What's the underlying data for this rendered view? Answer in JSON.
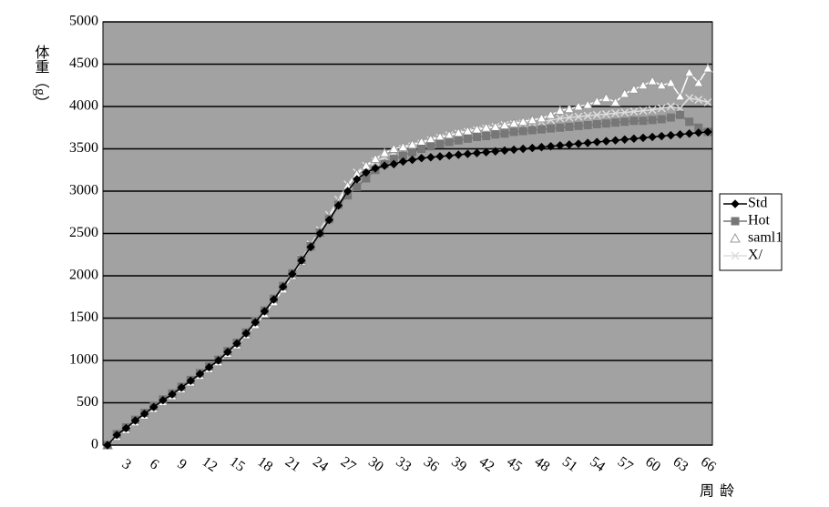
{
  "chart_data": {
    "type": "line",
    "y_label": "体重（g）",
    "x_label": "周龄",
    "categories": [
      null,
      null,
      3,
      null,
      null,
      6,
      null,
      null,
      9,
      null,
      null,
      12,
      null,
      null,
      15,
      null,
      null,
      18,
      null,
      null,
      21,
      null,
      null,
      24,
      null,
      null,
      27,
      null,
      null,
      30,
      null,
      null,
      33,
      null,
      null,
      36,
      null,
      null,
      39,
      null,
      null,
      42,
      null,
      null,
      45,
      null,
      null,
      48,
      null,
      null,
      51,
      null,
      null,
      54,
      null,
      null,
      57,
      null,
      null,
      60,
      null,
      null,
      63,
      null,
      null,
      66
    ],
    "series": [
      {
        "name": "Std",
        "color": "#000000",
        "marker": "diamond",
        "values": [
          0,
          120,
          200,
          290,
          370,
          450,
          530,
          600,
          680,
          760,
          840,
          920,
          1000,
          1100,
          1200,
          1320,
          1450,
          1580,
          1720,
          1870,
          2020,
          2180,
          2340,
          2500,
          2660,
          2830,
          3000,
          3140,
          3220,
          3270,
          3300,
          3320,
          3350,
          3370,
          3390,
          3400,
          3410,
          3420,
          3430,
          3440,
          3450,
          3460,
          3470,
          3480,
          3490,
          3500,
          3510,
          3520,
          3530,
          3540,
          3550,
          3560,
          3570,
          3580,
          3590,
          3600,
          3610,
          3620,
          3630,
          3640,
          3650,
          3660,
          3670,
          3680,
          3690,
          3700
        ]
      },
      {
        "name": "Hot",
        "color": "#777777",
        "marker": "square",
        "values": [
          0,
          130,
          210,
          300,
          380,
          460,
          540,
          610,
          690,
          770,
          850,
          930,
          1010,
          1110,
          1210,
          1330,
          1460,
          1590,
          1730,
          1880,
          2030,
          2190,
          2350,
          2510,
          2670,
          2840,
          2950,
          3050,
          3150,
          3250,
          3320,
          3380,
          3420,
          3460,
          3500,
          3530,
          3560,
          3580,
          3600,
          3620,
          3640,
          3650,
          3670,
          3680,
          3700,
          3710,
          3720,
          3730,
          3740,
          3750,
          3760,
          3770,
          3780,
          3790,
          3800,
          3810,
          3820,
          3830,
          3830,
          3840,
          3850,
          3870,
          3900,
          3820,
          3750,
          3700
        ]
      },
      {
        "name": "saml1",
        "color": "#ffffff",
        "marker": "triangle",
        "values": [
          0,
          100,
          180,
          270,
          350,
          430,
          510,
          580,
          660,
          740,
          820,
          900,
          980,
          1080,
          1180,
          1300,
          1420,
          1550,
          1690,
          1840,
          2000,
          2170,
          2340,
          2510,
          2690,
          2870,
          3060,
          3200,
          3300,
          3380,
          3450,
          3500,
          3520,
          3550,
          3580,
          3610,
          3640,
          3660,
          3690,
          3710,
          3730,
          3750,
          3760,
          3780,
          3800,
          3820,
          3840,
          3860,
          3900,
          3950,
          3970,
          4000,
          4020,
          4060,
          4100,
          4050,
          4150,
          4200,
          4250,
          4300,
          4250,
          4280,
          4120,
          4400,
          4280,
          4450
        ]
      },
      {
        "name": "X/",
        "color": "#dddddd",
        "marker": "x",
        "values": [
          0,
          110,
          200,
          280,
          360,
          440,
          520,
          600,
          680,
          760,
          840,
          920,
          1000,
          1100,
          1200,
          1320,
          1450,
          1580,
          1720,
          1870,
          2030,
          2200,
          2370,
          2540,
          2720,
          2900,
          3080,
          3220,
          3300,
          3350,
          3400,
          3450,
          3500,
          3530,
          3560,
          3600,
          3630,
          3660,
          3680,
          3700,
          3720,
          3740,
          3760,
          3780,
          3790,
          3800,
          3810,
          3820,
          3840,
          3860,
          3870,
          3880,
          3890,
          3900,
          3910,
          3920,
          3930,
          3940,
          3950,
          3960,
          3980,
          4000,
          3980,
          4100,
          4080,
          4050
        ]
      }
    ],
    "ylim": [
      0,
      5000
    ],
    "yticks": [
      0,
      500,
      1000,
      1500,
      2000,
      2500,
      3000,
      3500,
      4000,
      4500,
      5000
    ],
    "grid": true,
    "legend": "right"
  }
}
